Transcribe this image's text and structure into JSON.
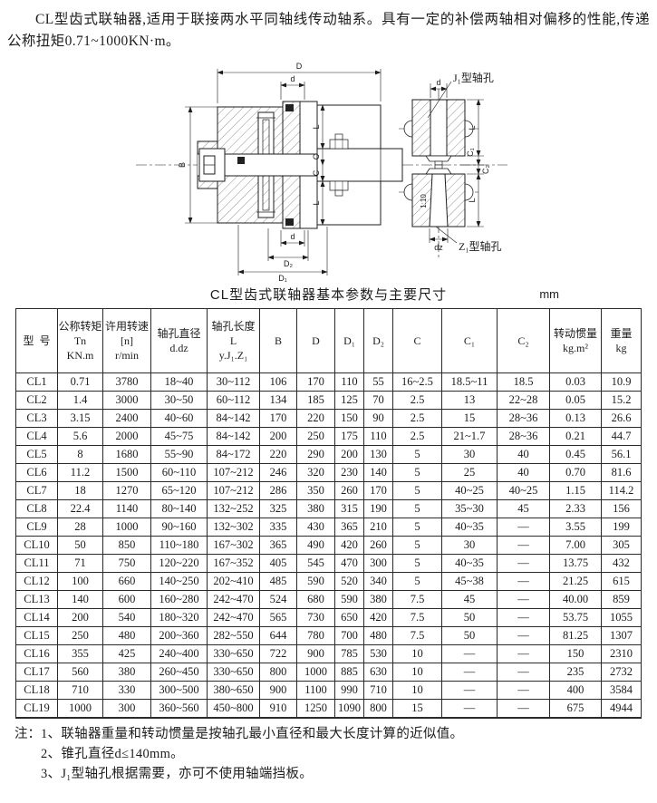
{
  "intro": {
    "text": "CL型齿式联轴器,适用于联接两水平同轴线传动轴系。具有一定的补偿两轴相对偏移的性能,传递公称扭矩0.71~1000KN·m。"
  },
  "diagram": {
    "main_view": {
      "dim_outer": "D",
      "dim_bore_top": "d",
      "dim_width": "B",
      "dim_len": "L",
      "dim_gap": "C",
      "dim_bore_bottom": "d",
      "dim_d2": "D₂",
      "dim_d1": "D₁"
    },
    "side_view": {
      "j1_label": "J₁型轴孔",
      "z1_label": "Z₁型轴孔",
      "dim_bore_top": "d",
      "dim_len": "L",
      "dim_c1": "C₁",
      "dim_c2": "C₂",
      "taper": "1:10",
      "dim_bore_bottom": "dz"
    }
  },
  "table": {
    "title": "CL型齿式联轴器基本参数与主要尺寸",
    "unit": "mm",
    "columns": [
      "型  号",
      "公称转矩\nTn\nKN.m",
      "许用转速\n[n]\nr/min",
      "轴孔直径\nd.dz",
      "轴孔长度\nL\ny.J₁.Z₁",
      "B",
      "D",
      "D₁",
      "D₂",
      "C",
      "C₁",
      "C₂",
      "转动惯量\nkg.m²",
      "重量\nkg"
    ],
    "rows": [
      [
        "CL1",
        "0.71",
        "3780",
        "18~40",
        "30~112",
        "106",
        "170",
        "110",
        "55",
        "16~2.5",
        "18.5~11",
        "18.5",
        "0.03",
        "10.9"
      ],
      [
        "CL2",
        "1.4",
        "3000",
        "30~50",
        "60~112",
        "134",
        "185",
        "125",
        "70",
        "2.5",
        "13",
        "22~28",
        "0.05",
        "15.2"
      ],
      [
        "CL3",
        "3.15",
        "2400",
        "40~60",
        "84~142",
        "170",
        "220",
        "150",
        "90",
        "2.5",
        "15",
        "28~36",
        "0.13",
        "26.6"
      ],
      [
        "CL4",
        "5.6",
        "2000",
        "45~75",
        "84~142",
        "200",
        "250",
        "175",
        "110",
        "2.5",
        "21~1.7",
        "28~36",
        "0.21",
        "44.7"
      ],
      [
        "CL5",
        "8",
        "1680",
        "55~90",
        "84~172",
        "220",
        "290",
        "200",
        "130",
        "5",
        "30",
        "40",
        "0.45",
        "56.1"
      ],
      [
        "CL6",
        "11.2",
        "1500",
        "60~110",
        "107~212",
        "246",
        "320",
        "230",
        "140",
        "5",
        "25",
        "40",
        "0.70",
        "81.6"
      ],
      [
        "CL7",
        "18",
        "1270",
        "65~120",
        "107~212",
        "286",
        "350",
        "260",
        "170",
        "5",
        "40~25",
        "40~25",
        "1.15",
        "114.2"
      ],
      [
        "CL8",
        "22.4",
        "1140",
        "80~140",
        "132~252",
        "325",
        "380",
        "315",
        "190",
        "5",
        "35~30",
        "45",
        "2.33",
        "156"
      ],
      [
        "CL9",
        "28",
        "1000",
        "90~160",
        "132~302",
        "335",
        "430",
        "365",
        "210",
        "5",
        "40~35",
        "—",
        "3.55",
        "199"
      ],
      [
        "CL10",
        "50",
        "850",
        "110~180",
        "167~302",
        "365",
        "490",
        "420",
        "260",
        "5",
        "30",
        "—",
        "7.00",
        "305"
      ],
      [
        "CL11",
        "71",
        "750",
        "120~220",
        "167~352",
        "405",
        "545",
        "470",
        "300",
        "5",
        "40~35",
        "—",
        "13.75",
        "432"
      ],
      [
        "CL12",
        "100",
        "660",
        "140~250",
        "202~410",
        "485",
        "590",
        "520",
        "340",
        "5",
        "45~38",
        "—",
        "21.25",
        "615"
      ],
      [
        "CL13",
        "140",
        "600",
        "160~280",
        "242~470",
        "524",
        "680",
        "590",
        "380",
        "7.5",
        "45",
        "—",
        "40.00",
        "859"
      ],
      [
        "CL14",
        "200",
        "540",
        "180~320",
        "242~470",
        "565",
        "730",
        "650",
        "420",
        "7.5",
        "50",
        "—",
        "53.75",
        "1055"
      ],
      [
        "CL15",
        "250",
        "480",
        "200~360",
        "282~550",
        "644",
        "780",
        "700",
        "480",
        "7.5",
        "50",
        "—",
        "81.25",
        "1307"
      ],
      [
        "CL16",
        "355",
        "425",
        "240~400",
        "330~650",
        "722",
        "900",
        "785",
        "530",
        "10",
        "—",
        "—",
        "150",
        "2310"
      ],
      [
        "CL17",
        "560",
        "380",
        "260~450",
        "330~650",
        "800",
        "1000",
        "885",
        "630",
        "10",
        "—",
        "—",
        "235",
        "2732"
      ],
      [
        "CL18",
        "710",
        "330",
        "300~500",
        "380~650",
        "900",
        "1100",
        "990",
        "710",
        "10",
        "—",
        "—",
        "400",
        "3584"
      ],
      [
        "CL19",
        "1000",
        "300",
        "360~560",
        "450~800",
        "910",
        "1250",
        "1090",
        "800",
        "15",
        "—",
        "—",
        "675",
        "4944"
      ]
    ]
  },
  "notes": {
    "prefix": "注：",
    "items": [
      "1、联轴器重量和转动惯量是按轴孔最小直径和最大长度计算的近似值。",
      "2、锥孔直径d≤140mm。",
      "3、J₁型轴孔根据需要，亦可不使用轴端挡板。"
    ]
  }
}
